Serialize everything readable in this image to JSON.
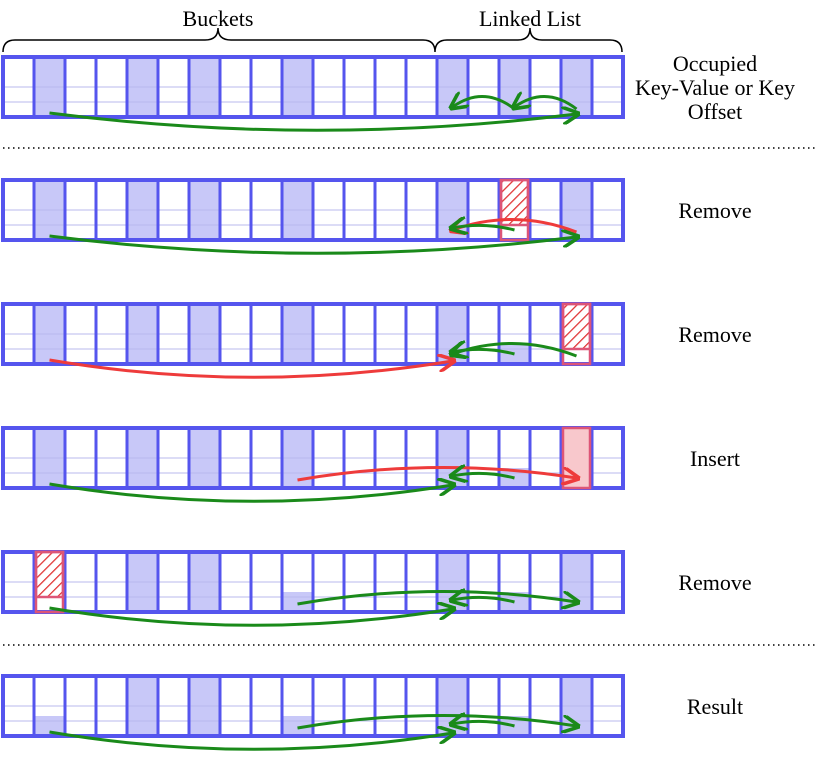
{
  "header": {
    "buckets": "Buckets",
    "linked_list": "Linked List"
  },
  "rows": [
    {
      "lines": [
        "Occupied",
        "Key-Value or Key",
        "Offset"
      ]
    },
    {
      "lines": [
        "Remove"
      ]
    },
    {
      "lines": [
        "Remove"
      ]
    },
    {
      "lines": [
        "Insert"
      ]
    },
    {
      "lines": [
        "Remove"
      ]
    },
    {
      "lines": [
        "Result"
      ]
    }
  ]
}
